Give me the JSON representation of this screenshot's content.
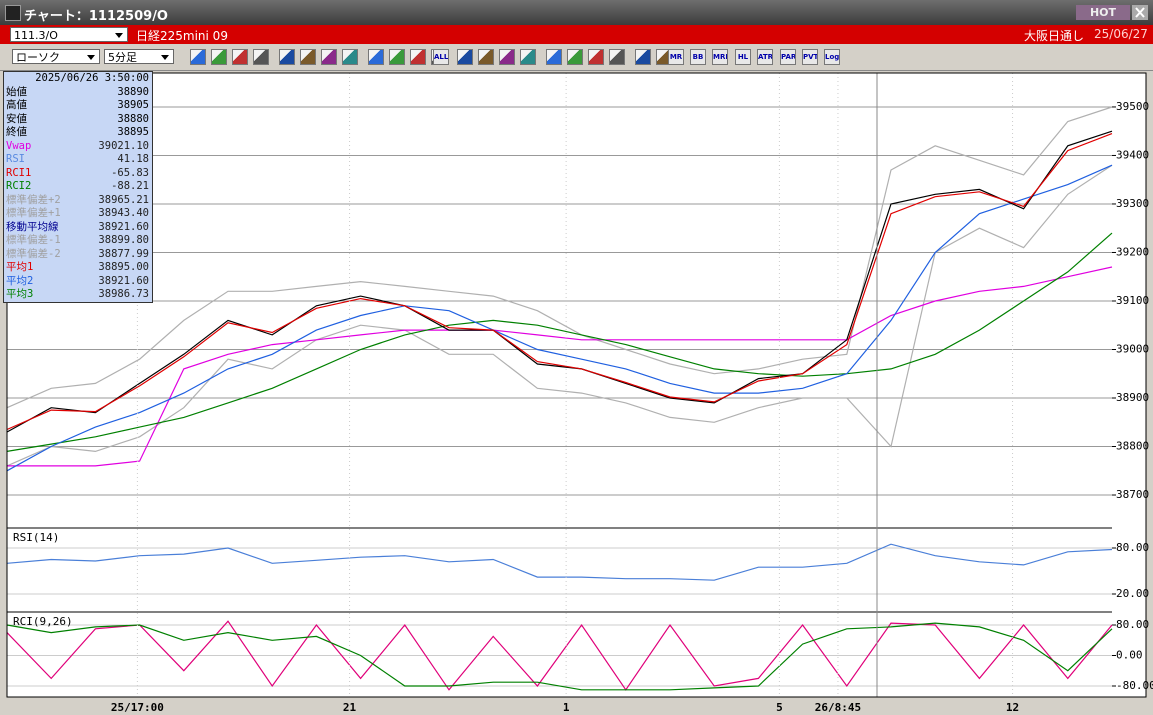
{
  "window": {
    "title": "チャート：1112509/O",
    "badge": "HOT"
  },
  "header": {
    "symbol": "111.3/O",
    "name": "日経225mini 09",
    "session": "大阪日通し",
    "date": "25/06/27"
  },
  "toolbar": {
    "chart_type": "ローソク",
    "interval": "5分足",
    "buttons": [
      "ALL",
      "MR",
      "BB",
      "MRE",
      "HL",
      "ATR",
      "PAR",
      "PVT",
      "Log"
    ]
  },
  "info_panel": {
    "timestamp": "2025/06/26  3:50:00",
    "rows": [
      {
        "label": "始値",
        "value": "38890",
        "color": "#000000"
      },
      {
        "label": "高値",
        "value": "38905",
        "color": "#000000"
      },
      {
        "label": "安値",
        "value": "38880",
        "color": "#000000"
      },
      {
        "label": "終値",
        "value": "38895",
        "color": "#000000"
      },
      {
        "label": "Vwap",
        "value": "39021.10",
        "color": "#e000e0"
      },
      {
        "label": "RSI",
        "value": "41.18",
        "color": "#5a8ae0"
      },
      {
        "label": "RCI1",
        "value": "-65.83",
        "color": "#e00000"
      },
      {
        "label": "RCI2",
        "value": "-88.21",
        "color": "#008000"
      },
      {
        "label": "標準偏差+2",
        "value": "38965.21",
        "color": "#a0a0a0"
      },
      {
        "label": "標準偏差+1",
        "value": "38943.40",
        "color": "#a0a0a0"
      },
      {
        "label": "移動平均線",
        "value": "38921.60",
        "color": "#000090"
      },
      {
        "label": "標準偏差-1",
        "value": "38899.80",
        "color": "#a0a0a0"
      },
      {
        "label": "標準偏差-2",
        "value": "38877.99",
        "color": "#a0a0a0"
      },
      {
        "label": "平均1",
        "value": "38895.00",
        "color": "#e00000"
      },
      {
        "label": "平均2",
        "value": "38921.60",
        "color": "#2060e0"
      },
      {
        "label": "平均3",
        "value": "38986.73",
        "color": "#008000"
      }
    ]
  },
  "chart_data": [
    {
      "type": "line",
      "x": [
        0,
        4,
        8,
        12,
        16,
        20,
        24,
        28,
        32,
        36,
        40,
        44,
        48,
        52,
        56,
        60,
        64,
        68,
        72,
        76,
        80,
        84,
        88,
        92,
        96,
        100
      ],
      "xlim": [
        0,
        100
      ],
      "ylim": [
        38632,
        39570
      ],
      "yticks": [
        38700,
        38800,
        38900,
        39000,
        39100,
        39200,
        39300,
        39400,
        39500
      ],
      "grid": true,
      "series": [
        {
          "color": "#b0b0b0",
          "values": [
            38880,
            38920,
            38930,
            38980,
            39060,
            39120,
            39120,
            39130,
            39140,
            39130,
            39120,
            39110,
            39080,
            39030,
            39000,
            38970,
            38950,
            38960,
            38980,
            38990,
            39370,
            39420,
            39390,
            39360,
            39470,
            39500
          ]
        },
        {
          "color": "#b0b0b0",
          "values": [
            38760,
            38800,
            38790,
            38820,
            38880,
            38980,
            38960,
            39020,
            39050,
            39040,
            38990,
            38990,
            38920,
            38910,
            38890,
            38860,
            38850,
            38880,
            38900,
            38900,
            38800,
            39200,
            39250,
            39210,
            39320,
            39380
          ]
        },
        {
          "color": "#e000e0",
          "values": [
            38760,
            38760,
            38760,
            38770,
            38960,
            38990,
            39010,
            39020,
            39030,
            39040,
            39040,
            39040,
            39030,
            39020,
            39020,
            39020,
            39020,
            39020,
            39020,
            39020,
            39070,
            39100,
            39120,
            39130,
            39150,
            39170
          ]
        },
        {
          "color": "#008000",
          "values": [
            38790,
            38805,
            38820,
            38840,
            38860,
            38890,
            38920,
            38960,
            39000,
            39030,
            39050,
            39060,
            39050,
            39030,
            39010,
            38985,
            38960,
            38950,
            38945,
            38950,
            38960,
            38990,
            39040,
            39100,
            39160,
            39240
          ]
        },
        {
          "color": "#2060e0",
          "values": [
            38750,
            38800,
            38840,
            38870,
            38910,
            38960,
            38990,
            39040,
            39070,
            39090,
            39080,
            39040,
            39000,
            38980,
            38960,
            38930,
            38910,
            38910,
            38920,
            38950,
            39060,
            39200,
            39280,
            39310,
            39340,
            39380
          ]
        },
        {
          "color": "#000000",
          "values": [
            38830,
            38880,
            38870,
            38930,
            38990,
            39060,
            39030,
            39090,
            39110,
            39090,
            39040,
            39040,
            38970,
            38960,
            38930,
            38900,
            38890,
            38940,
            38950,
            39020,
            39300,
            39320,
            39330,
            39290,
            39420,
            39450
          ]
        },
        {
          "color": "#e00000",
          "values": [
            38835,
            38875,
            38872,
            38925,
            38985,
            39055,
            39035,
            39085,
            39105,
            39090,
            39045,
            39040,
            38975,
            38960,
            38932,
            38902,
            38892,
            38935,
            38950,
            39010,
            39280,
            39315,
            39325,
            39295,
            39410,
            39445
          ]
        }
      ]
    },
    {
      "type": "line",
      "title": "RSI(14)",
      "x": [
        0,
        4,
        8,
        12,
        16,
        20,
        24,
        28,
        32,
        36,
        40,
        44,
        48,
        52,
        56,
        60,
        64,
        68,
        72,
        76,
        80,
        84,
        88,
        92,
        96,
        100
      ],
      "xlim": [
        0,
        100
      ],
      "ylim": [
        -3.5,
        103.5
      ],
      "yticks": [
        {
          "value": 80,
          "label": "80.00"
        },
        {
          "value": 20,
          "label": "20.00"
        }
      ],
      "grid": true,
      "series": [
        {
          "color": "#4a7fd8",
          "values": [
            60,
            65,
            63,
            70,
            72,
            80,
            60,
            64,
            68,
            70,
            62,
            65,
            42,
            42,
            40,
            40,
            38,
            55,
            55,
            60,
            85,
            70,
            62,
            58,
            75,
            78
          ]
        }
      ]
    },
    {
      "type": "line",
      "title": "RCI(9,26)",
      "x": [
        0,
        4,
        8,
        12,
        16,
        20,
        24,
        28,
        32,
        36,
        40,
        44,
        48,
        52,
        56,
        60,
        64,
        68,
        72,
        76,
        80,
        84,
        88,
        92,
        96,
        100
      ],
      "xlim": [
        0,
        100
      ],
      "ylim": [
        -108.9,
        108.9
      ],
      "yticks": [
        {
          "value": 80,
          "label": "80.00"
        },
        {
          "value": 0,
          "label": "0.00"
        },
        {
          "value": -80,
          "label": "-80.00"
        }
      ],
      "grid": true,
      "xticks": [
        {
          "value": 11.8,
          "label": "25/17:00"
        },
        {
          "value": 31,
          "label": "21"
        },
        {
          "value": 50.6,
          "label": "1"
        },
        {
          "value": 69.9,
          "label": "5"
        },
        {
          "value": 75.2,
          "label": "26/8:45"
        },
        {
          "value": 91,
          "label": "12"
        }
      ],
      "series": [
        {
          "color": "#e0007a",
          "values": [
            60,
            -60,
            70,
            80,
            -40,
            90,
            -80,
            80,
            -60,
            80,
            -90,
            50,
            -80,
            80,
            -90,
            80,
            -80,
            -60,
            80,
            -80,
            85,
            80,
            -60,
            80,
            -60,
            80
          ]
        },
        {
          "color": "#008000",
          "values": [
            80,
            60,
            75,
            80,
            40,
            60,
            40,
            50,
            0,
            -80,
            -80,
            -70,
            -70,
            -90,
            -90,
            -90,
            -85,
            -80,
            30,
            70,
            75,
            85,
            75,
            40,
            -40,
            70
          ]
        }
      ]
    }
  ]
}
